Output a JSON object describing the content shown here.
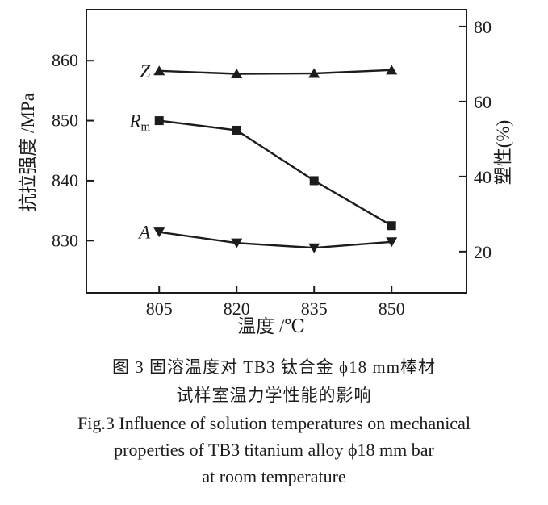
{
  "figure": {
    "caption": {
      "zh_line1": "图 3  固溶温度对 TB3 钛合金 ϕ18 mm棒材",
      "zh_line2": "试样室温力学性能的影响",
      "en_line1": "Fig.3  Influence of solution temperatures on mechanical",
      "en_line2": "properties of TB3 titanium alloy ϕ18 mm bar",
      "en_line3": "at room temperature"
    }
  },
  "chart_data": {
    "type": "line",
    "title": "",
    "xlabel": "温度 /℃",
    "ylabel_left": "抗拉强度 /MPa",
    "ylabel_right": "塑性(%)",
    "x": [
      805,
      820,
      835,
      850
    ],
    "x_ticks": [
      805,
      820,
      835,
      850
    ],
    "xlim": [
      790.9,
      864.5
    ],
    "left_ticks": [
      830,
      840,
      850,
      860
    ],
    "left_ylim": [
      821.3,
      868.5
    ],
    "right_ticks": [
      20,
      40,
      60,
      80
    ],
    "right_ylim": [
      9.0,
      84.5
    ],
    "grid": false,
    "legend": "inline series labels at first data point",
    "ink_color": "#1c1c1c",
    "background": "#ffffff",
    "series": [
      {
        "name": "Z",
        "label": "Z",
        "label_sub": "",
        "axis": "right",
        "marker": "triangle-up",
        "values": [
          68.2,
          67.4,
          67.5,
          68.4
        ]
      },
      {
        "name": "Rm",
        "label": "R",
        "label_sub": "m",
        "axis": "left",
        "marker": "square",
        "values": [
          850.0,
          848.4,
          840.0,
          832.5
        ]
      },
      {
        "name": "A",
        "label": "A",
        "label_sub": "",
        "axis": "right",
        "marker": "triangle-down",
        "values": [
          25.2,
          22.3,
          21.0,
          22.6
        ]
      }
    ]
  }
}
